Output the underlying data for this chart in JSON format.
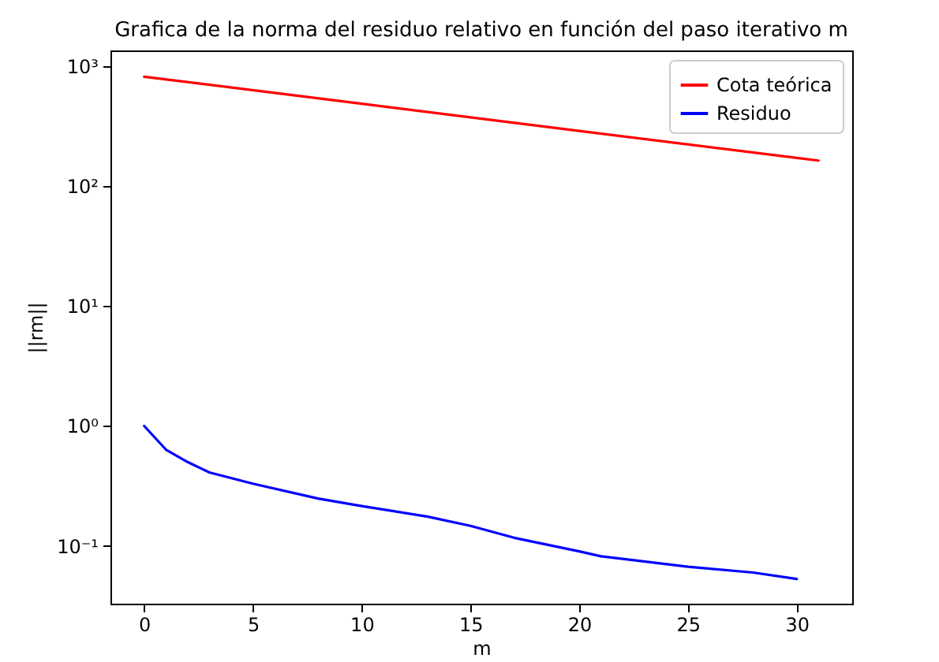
{
  "chart_data": {
    "type": "line",
    "title": "Grafica de la norma del residuo relativo en función del paso iterativo m",
    "xlabel": "m",
    "ylabel": "||rm||",
    "log": "y",
    "grid": false,
    "legend": "top right",
    "marker": "none",
    "line_style": "solid",
    "xlim": [
      -1.55,
      32.55
    ],
    "xticks": [
      0,
      5,
      10,
      15,
      20,
      25,
      30
    ],
    "ylim": [
      0.033,
      1350
    ],
    "yticks": [
      {
        "value": 0.1,
        "label": "10⁻¹"
      },
      {
        "value": 1,
        "label": "10⁰"
      },
      {
        "value": 10,
        "label": "10¹"
      },
      {
        "value": 100,
        "label": "10²"
      },
      {
        "value": 1000,
        "label": "10³"
      }
    ],
    "series": [
      {
        "name": "Cota teórica",
        "color": "#ff0000",
        "x": [
          0,
          10,
          20,
          31
        ],
        "values": [
          815,
          485,
          288,
          163
        ]
      },
      {
        "name": "Residuo",
        "color": "#0000ff",
        "x": [
          0,
          1,
          2,
          3,
          5,
          8,
          10,
          13,
          15,
          17,
          20,
          21,
          25,
          28,
          30
        ],
        "values": [
          1.0,
          0.635,
          0.5,
          0.41,
          0.33,
          0.248,
          0.215,
          0.176,
          0.147,
          0.117,
          0.09,
          0.082,
          0.067,
          0.06,
          0.053
        ]
      }
    ]
  }
}
